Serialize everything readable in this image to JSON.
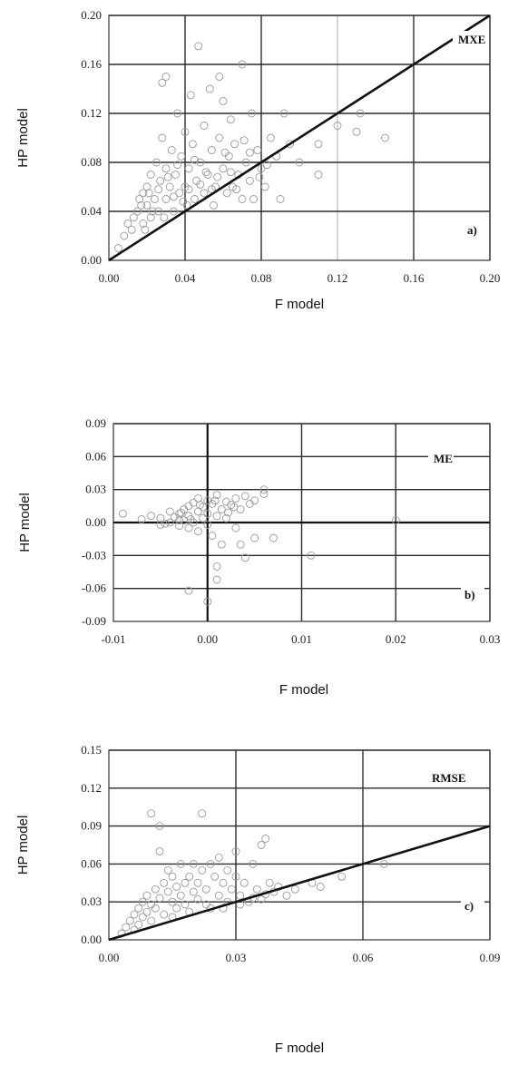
{
  "chart_data": [
    {
      "type": "scatter",
      "title": "",
      "xlabel": "F model",
      "ylabel": "HP model",
      "xlim": [
        0,
        0.2
      ],
      "ylim": [
        0,
        0.2
      ],
      "xticks": [
        "0.00",
        "0.04",
        "0.08",
        "0.12",
        "0.16",
        "0.20"
      ],
      "yticks": [
        "0.00",
        "0.04",
        "0.08",
        "0.12",
        "0.16",
        "0.20"
      ],
      "annotations": [
        "MXE",
        "a)"
      ],
      "reference_line": "y=x",
      "grid": true,
      "points": [
        [
          0.005,
          0.01
        ],
        [
          0.008,
          0.02
        ],
        [
          0.01,
          0.03
        ],
        [
          0.012,
          0.025
        ],
        [
          0.015,
          0.04
        ],
        [
          0.016,
          0.05
        ],
        [
          0.018,
          0.03
        ],
        [
          0.018,
          0.055
        ],
        [
          0.02,
          0.045
        ],
        [
          0.02,
          0.06
        ],
        [
          0.022,
          0.035
        ],
        [
          0.022,
          0.07
        ],
        [
          0.024,
          0.05
        ],
        [
          0.025,
          0.08
        ],
        [
          0.026,
          0.04
        ],
        [
          0.027,
          0.065
        ],
        [
          0.028,
          0.1
        ],
        [
          0.028,
          0.145
        ],
        [
          0.03,
          0.05
        ],
        [
          0.03,
          0.15
        ],
        [
          0.03,
          0.075
        ],
        [
          0.032,
          0.06
        ],
        [
          0.033,
          0.09
        ],
        [
          0.034,
          0.04
        ],
        [
          0.035,
          0.07
        ],
        [
          0.036,
          0.12
        ],
        [
          0.037,
          0.055
        ],
        [
          0.038,
          0.085
        ],
        [
          0.04,
          0.06
        ],
        [
          0.04,
          0.105
        ],
        [
          0.041,
          0.045
        ],
        [
          0.042,
          0.075
        ],
        [
          0.043,
          0.135
        ],
        [
          0.044,
          0.095
        ],
        [
          0.045,
          0.05
        ],
        [
          0.046,
          0.065
        ],
        [
          0.047,
          0.175
        ],
        [
          0.048,
          0.08
        ],
        [
          0.05,
          0.055
        ],
        [
          0.05,
          0.11
        ],
        [
          0.052,
          0.07
        ],
        [
          0.053,
          0.14
        ],
        [
          0.054,
          0.09
        ],
        [
          0.055,
          0.045
        ],
        [
          0.056,
          0.06
        ],
        [
          0.058,
          0.15
        ],
        [
          0.058,
          0.1
        ],
        [
          0.06,
          0.075
        ],
        [
          0.06,
          0.13
        ],
        [
          0.062,
          0.055
        ],
        [
          0.063,
          0.085
        ],
        [
          0.064,
          0.115
        ],
        [
          0.065,
          0.06
        ],
        [
          0.066,
          0.095
        ],
        [
          0.068,
          0.07
        ],
        [
          0.07,
          0.16
        ],
        [
          0.07,
          0.05
        ],
        [
          0.072,
          0.08
        ],
        [
          0.074,
          0.065
        ],
        [
          0.075,
          0.12
        ],
        [
          0.076,
          0.05
        ],
        [
          0.078,
          0.09
        ],
        [
          0.08,
          0.075
        ],
        [
          0.082,
          0.06
        ],
        [
          0.085,
          0.1
        ],
        [
          0.088,
          0.085
        ],
        [
          0.09,
          0.05
        ],
        [
          0.092,
          0.12
        ],
        [
          0.095,
          0.095
        ],
        [
          0.1,
          0.08
        ],
        [
          0.11,
          0.07
        ],
        [
          0.11,
          0.095
        ],
        [
          0.12,
          0.11
        ],
        [
          0.13,
          0.105
        ],
        [
          0.132,
          0.12
        ],
        [
          0.145,
          0.1
        ],
        [
          0.013,
          0.035
        ],
        [
          0.017,
          0.045
        ],
        [
          0.019,
          0.025
        ],
        [
          0.021,
          0.055
        ],
        [
          0.023,
          0.04
        ],
        [
          0.026,
          0.058
        ],
        [
          0.029,
          0.035
        ],
        [
          0.031,
          0.068
        ],
        [
          0.034,
          0.052
        ],
        [
          0.036,
          0.078
        ],
        [
          0.039,
          0.048
        ],
        [
          0.042,
          0.058
        ],
        [
          0.045,
          0.082
        ],
        [
          0.048,
          0.062
        ],
        [
          0.051,
          0.072
        ],
        [
          0.054,
          0.058
        ],
        [
          0.057,
          0.068
        ],
        [
          0.061,
          0.088
        ],
        [
          0.064,
          0.072
        ],
        [
          0.067,
          0.058
        ],
        [
          0.071,
          0.098
        ],
        [
          0.074,
          0.088
        ],
        [
          0.079,
          0.068
        ],
        [
          0.083,
          0.078
        ]
      ]
    },
    {
      "type": "scatter",
      "title": "",
      "xlabel": "F model",
      "ylabel": "HP model",
      "xlim": [
        -0.01,
        0.03
      ],
      "ylim": [
        -0.09,
        0.09
      ],
      "xticks": [
        "-0.01",
        "0.00",
        "0.01",
        "0.02",
        "0.03"
      ],
      "yticks": [
        "0.09",
        "0.06",
        "0.03",
        "0.00",
        "-0.03",
        "-0.06",
        "-0.09"
      ],
      "annotations": [
        "ME",
        "b)"
      ],
      "grid": true,
      "points": [
        [
          -0.009,
          0.008
        ],
        [
          -0.007,
          0.003
        ],
        [
          -0.006,
          0.006
        ],
        [
          -0.005,
          -0.002
        ],
        [
          -0.005,
          0.004
        ],
        [
          -0.004,
          0.01
        ],
        [
          -0.004,
          0.0
        ],
        [
          -0.0035,
          0.005
        ],
        [
          -0.003,
          -0.003
        ],
        [
          -0.003,
          0.008
        ],
        [
          -0.0025,
          0.012
        ],
        [
          -0.0025,
          0.002
        ],
        [
          -0.002,
          0.015
        ],
        [
          -0.002,
          -0.005
        ],
        [
          -0.002,
          0.006
        ],
        [
          -0.0015,
          0.018
        ],
        [
          -0.0015,
          0.0
        ],
        [
          -0.001,
          0.01
        ],
        [
          -0.001,
          -0.008
        ],
        [
          -0.001,
          0.022
        ],
        [
          -0.0005,
          0.004
        ],
        [
          -0.0005,
          0.014
        ],
        [
          0.0,
          0.02
        ],
        [
          0.0,
          -0.002
        ],
        [
          0.0,
          0.008
        ],
        [
          0.0005,
          0.017
        ],
        [
          0.0005,
          -0.012
        ],
        [
          0.001,
          0.025
        ],
        [
          0.001,
          0.006
        ],
        [
          0.0015,
          0.012
        ],
        [
          0.0015,
          -0.02
        ],
        [
          0.002,
          0.019
        ],
        [
          0.002,
          0.004
        ],
        [
          0.0025,
          0.016
        ],
        [
          0.003,
          0.022
        ],
        [
          0.003,
          -0.005
        ],
        [
          0.0035,
          0.012
        ],
        [
          0.0035,
          -0.02
        ],
        [
          0.004,
          0.024
        ],
        [
          0.004,
          -0.032
        ],
        [
          0.0045,
          0.017
        ],
        [
          0.005,
          0.02
        ],
        [
          0.005,
          -0.014
        ],
        [
          0.006,
          0.03
        ],
        [
          0.006,
          0.026
        ],
        [
          0.007,
          -0.014
        ],
        [
          0.011,
          -0.03
        ],
        [
          0.02,
          0.002
        ],
        [
          -0.002,
          -0.062
        ],
        [
          0.0,
          -0.072
        ],
        [
          0.001,
          -0.052
        ],
        [
          0.001,
          -0.04
        ],
        [
          -0.003,
          0.002
        ],
        [
          -0.0045,
          -0.001
        ],
        [
          -0.0028,
          0.009
        ],
        [
          -0.0018,
          0.003
        ],
        [
          -0.0008,
          0.016
        ],
        [
          0.0008,
          0.02
        ],
        [
          0.0022,
          0.009
        ],
        [
          0.0028,
          0.014
        ]
      ]
    },
    {
      "type": "scatter",
      "title": "",
      "xlabel": "F model",
      "ylabel": "HP model",
      "xlim": [
        0,
        0.09
      ],
      "ylim": [
        0,
        0.15
      ],
      "xticks": [
        "0.00",
        "0.03",
        "0.06",
        "0.09"
      ],
      "yticks": [
        "0.00",
        "0.03",
        "0.06",
        "0.09",
        "0.12",
        "0.15"
      ],
      "annotations": [
        "RMSE",
        "c)"
      ],
      "reference_line": "y=x",
      "grid": true,
      "points": [
        [
          0.003,
          0.005
        ],
        [
          0.004,
          0.01
        ],
        [
          0.005,
          0.015
        ],
        [
          0.006,
          0.02
        ],
        [
          0.006,
          0.008
        ],
        [
          0.007,
          0.025
        ],
        [
          0.007,
          0.012
        ],
        [
          0.008,
          0.03
        ],
        [
          0.008,
          0.018
        ],
        [
          0.009,
          0.022
        ],
        [
          0.009,
          0.035
        ],
        [
          0.01,
          0.028
        ],
        [
          0.01,
          0.1
        ],
        [
          0.01,
          0.015
        ],
        [
          0.011,
          0.04
        ],
        [
          0.011,
          0.025
        ],
        [
          0.012,
          0.09
        ],
        [
          0.012,
          0.033
        ],
        [
          0.012,
          0.07
        ],
        [
          0.013,
          0.045
        ],
        [
          0.013,
          0.02
        ],
        [
          0.014,
          0.038
        ],
        [
          0.014,
          0.055
        ],
        [
          0.015,
          0.03
        ],
        [
          0.015,
          0.05
        ],
        [
          0.016,
          0.042
        ],
        [
          0.016,
          0.025
        ],
        [
          0.017,
          0.06
        ],
        [
          0.017,
          0.035
        ],
        [
          0.018,
          0.045
        ],
        [
          0.018,
          0.028
        ],
        [
          0.019,
          0.05
        ],
        [
          0.02,
          0.038
        ],
        [
          0.02,
          0.06
        ],
        [
          0.021,
          0.032
        ],
        [
          0.021,
          0.045
        ],
        [
          0.022,
          0.1
        ],
        [
          0.022,
          0.055
        ],
        [
          0.023,
          0.04
        ],
        [
          0.024,
          0.06
        ],
        [
          0.024,
          0.025
        ],
        [
          0.025,
          0.05
        ],
        [
          0.026,
          0.035
        ],
        [
          0.026,
          0.065
        ],
        [
          0.027,
          0.045
        ],
        [
          0.028,
          0.03
        ],
        [
          0.028,
          0.055
        ],
        [
          0.029,
          0.04
        ],
        [
          0.03,
          0.05
        ],
        [
          0.03,
          0.07
        ],
        [
          0.031,
          0.035
        ],
        [
          0.032,
          0.045
        ],
        [
          0.033,
          0.03
        ],
        [
          0.034,
          0.06
        ],
        [
          0.035,
          0.04
        ],
        [
          0.036,
          0.075
        ],
        [
          0.036,
          0.032
        ],
        [
          0.037,
          0.08
        ],
        [
          0.038,
          0.045
        ],
        [
          0.039,
          0.038
        ],
        [
          0.04,
          0.042
        ],
        [
          0.042,
          0.035
        ],
        [
          0.044,
          0.04
        ],
        [
          0.048,
          0.045
        ],
        [
          0.05,
          0.042
        ],
        [
          0.055,
          0.05
        ],
        [
          0.065,
          0.06
        ],
        [
          0.015,
          0.018
        ],
        [
          0.019,
          0.022
        ],
        [
          0.023,
          0.028
        ],
        [
          0.027,
          0.025
        ],
        [
          0.031,
          0.028
        ],
        [
          0.034,
          0.033
        ],
        [
          0.037,
          0.036
        ]
      ]
    }
  ]
}
